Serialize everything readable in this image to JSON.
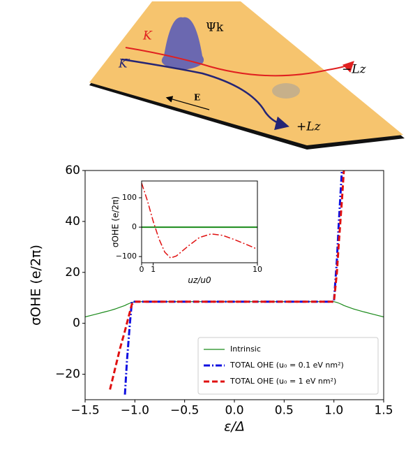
{
  "diagram": {
    "labels": {
      "psi": "Ψk",
      "k": "K",
      "kprime": "K′",
      "minus_lz": "−Lz",
      "plus_lz": "+Lz",
      "field": "E"
    }
  },
  "chart_data": [
    {
      "type": "line",
      "x_label": "ε/Δ",
      "y_label": "σOHE (e/2π)",
      "x": [
        -1.5,
        -1.4,
        -1.3,
        -1.25,
        -1.2,
        -1.15,
        -1.1,
        -1.08,
        -1.05,
        -1.03,
        -1.0,
        -0.5,
        0,
        0.5,
        1.0,
        1.03,
        1.05,
        1.08,
        1.1,
        1.2,
        1.3,
        1.4,
        1.5
      ],
      "series": [
        {
          "name": "Intrinsic",
          "color": "#1a8a1a",
          "style": "solid",
          "width": 1.2,
          "values": [
            2.5,
            3.5,
            4.5,
            5.0,
            5.6,
            6.3,
            7.0,
            7.4,
            7.9,
            8.2,
            8.5,
            8.5,
            8.5,
            8.5,
            8.5,
            8.2,
            7.9,
            7.4,
            7.0,
            5.6,
            4.5,
            3.5,
            2.5
          ]
        },
        {
          "name": "TOTAL OHE (u₀ = 0.1 eV nm²)",
          "color": "#1010e0",
          "style": "dashdot",
          "width": 3,
          "values": [
            null,
            null,
            null,
            null,
            null,
            null,
            -28,
            -15,
            0,
            8.5,
            8.5,
            8.5,
            8.5,
            8.5,
            8.5,
            25,
            40,
            60,
            null,
            null,
            null,
            null,
            null
          ]
        },
        {
          "name": "TOTAL OHE (u₀ = 1 eV nm²)",
          "color": "#e01010",
          "style": "dashed",
          "width": 3,
          "values": [
            null,
            null,
            null,
            -26,
            -18,
            -10,
            -3,
            0,
            4.5,
            7.5,
            8.5,
            8.5,
            8.5,
            8.5,
            8.5,
            20,
            32,
            48,
            60,
            null,
            null,
            null,
            null
          ]
        }
      ],
      "xlim": [
        -1.5,
        1.5
      ],
      "ylim": [
        -30,
        60
      ],
      "xticks": [
        {
          "value": -1.5,
          "label": "−1.5"
        },
        {
          "value": -1.0,
          "label": "−1.0"
        },
        {
          "value": -0.5,
          "label": "−0.5"
        },
        {
          "value": 0,
          "label": "0.0"
        },
        0.5,
        {
          "value": 1.0,
          "label": "1.0"
        },
        1.5
      ],
      "yticks": [
        {
          "value": -20,
          "label": "−20"
        },
        0,
        20,
        40,
        60
      ],
      "legend": "lower right"
    },
    {
      "type": "line",
      "x_label": "uz/u0",
      "y_label": "σOHE (e/2π)",
      "x": [
        0,
        0.5,
        1,
        1.5,
        2,
        2.5,
        3,
        4,
        5,
        6,
        7,
        8,
        9,
        10
      ],
      "series": [
        {
          "color": "#1a8a1a",
          "style": "solid",
          "width": 2,
          "values": [
            0,
            0,
            0,
            0,
            0,
            0,
            0,
            0,
            0,
            0,
            0,
            0,
            0,
            0
          ]
        },
        {
          "color": "#e01010",
          "style": "dashdot",
          "width": 1.5,
          "values": [
            150,
            90,
            20,
            -40,
            -85,
            -105,
            -98,
            -65,
            -35,
            -23,
            -28,
            -42,
            -58,
            -75
          ]
        }
      ],
      "xlim": [
        0,
        10
      ],
      "ylim": [
        -121,
        157
      ],
      "xticks": [
        0,
        1,
        10
      ],
      "yticks": [
        {
          "value": -100,
          "label": "−100"
        },
        0,
        100
      ]
    }
  ]
}
